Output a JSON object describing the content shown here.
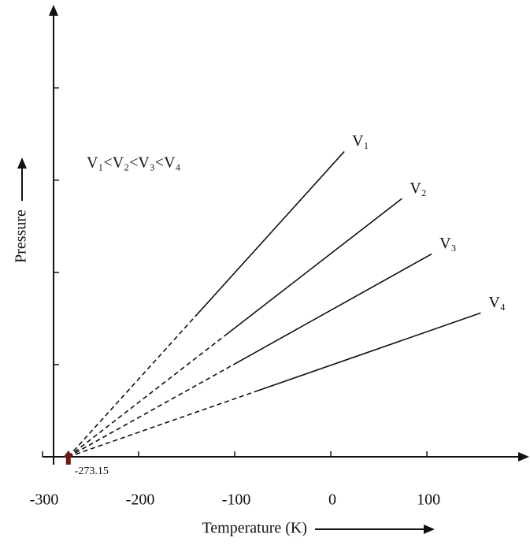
{
  "chart_data": {
    "type": "line",
    "xlabel": "Temperature (K)",
    "ylabel": "Pressure",
    "annotation": "-273.15",
    "note": "V₁<V₂<V₃<V₄",
    "xlim": [
      -300,
      195
    ],
    "xticks": [
      -300,
      -200,
      -100,
      0,
      100
    ],
    "ylim": [
      0,
      4.8
    ],
    "yticks": [
      1,
      2,
      3,
      4
    ],
    "series": [
      {
        "name": "V₁",
        "color": "#111111",
        "x": [
          -273.15,
          14
        ],
        "values": [
          0,
          3.31
        ]
      },
      {
        "name": "V₂",
        "color": "#111111",
        "x": [
          -273.15,
          74
        ],
        "values": [
          0,
          2.8
        ]
      },
      {
        "name": "V₃",
        "color": "#111111",
        "x": [
          -273.15,
          105
        ],
        "values": [
          0,
          2.2
        ]
      },
      {
        "name": "V₄",
        "color": "#111111",
        "x": [
          -273.15,
          156
        ],
        "values": [
          0,
          1.56
        ]
      }
    ]
  }
}
